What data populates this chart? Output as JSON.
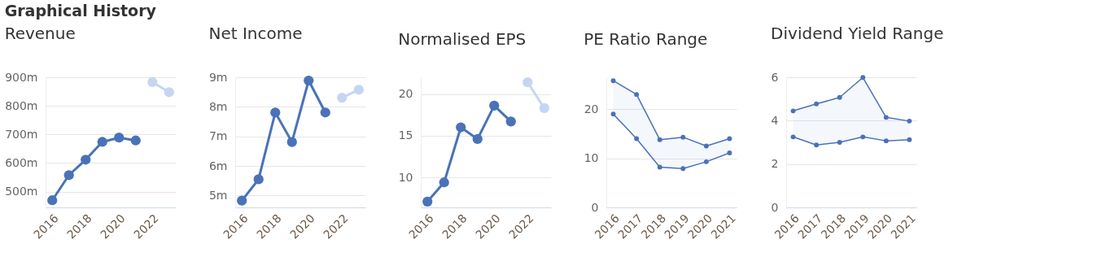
{
  "chart_data": [
    {
      "type": "line",
      "title": "Revenue",
      "annotations": [
        "Graphical History"
      ],
      "marker": "circle",
      "grid": "y",
      "xlim": [
        2015.6,
        2023.4
      ],
      "xticks": [
        2016,
        2018,
        2020,
        2022
      ],
      "ylim": [
        445,
        900
      ],
      "yticks": [
        {
          "value": 500,
          "label": "500m"
        },
        {
          "value": 600,
          "label": "600m"
        },
        {
          "value": 700,
          "label": "700m"
        },
        {
          "value": 800,
          "label": "800m"
        },
        {
          "value": 900,
          "label": "900m"
        }
      ],
      "series": [
        {
          "color": "#4a72b8",
          "x": [
            2016,
            2017,
            2018,
            2019,
            2020,
            2021
          ],
          "values": [
            470,
            558,
            612,
            674,
            689,
            679
          ]
        },
        {
          "color": "#c5d6f2",
          "x": [
            2022,
            2023
          ],
          "values": [
            883,
            848
          ]
        }
      ]
    },
    {
      "type": "line",
      "title": "Net Income",
      "marker": "circle",
      "grid": "y",
      "xlim": [
        2015.6,
        2023.4
      ],
      "xticks": [
        2016,
        2018,
        2020,
        2022
      ],
      "ylim": [
        4.6,
        9
      ],
      "yticks": [
        {
          "value": 5,
          "label": "5m"
        },
        {
          "value": 6,
          "label": "6m"
        },
        {
          "value": 7,
          "label": "7m"
        },
        {
          "value": 8,
          "label": "8m"
        },
        {
          "value": 9,
          "label": "9m"
        }
      ],
      "series": [
        {
          "color": "#4a72b8",
          "x": [
            2016,
            2017,
            2018,
            2019,
            2020,
            2021
          ],
          "values": [
            4.83,
            5.55,
            7.81,
            6.81,
            8.89,
            7.81
          ]
        },
        {
          "color": "#c5d6f2",
          "x": [
            2022,
            2023
          ],
          "values": [
            8.31,
            8.58
          ]
        }
      ]
    },
    {
      "type": "line",
      "title": "Normalised EPS",
      "marker": "circle",
      "grid": "y",
      "xlim": [
        2015.6,
        2023.4
      ],
      "xticks": [
        2016,
        2018,
        2020,
        2022
      ],
      "ylim": [
        6.4,
        22
      ],
      "yticks": [
        10,
        15,
        20
      ],
      "series": [
        {
          "color": "#4a72b8",
          "x": [
            2016,
            2017,
            2018,
            2019,
            2020,
            2021
          ],
          "values": [
            7.1,
            9.4,
            16.0,
            14.6,
            18.6,
            16.7
          ]
        },
        {
          "color": "#c5d6f2",
          "x": [
            2022,
            2023
          ],
          "values": [
            21.4,
            18.3
          ]
        }
      ]
    },
    {
      "type": "line",
      "title": "PE Ratio Range",
      "marker": "circle",
      "grid": "y",
      "xlim": [
        2015.7,
        2021.3
      ],
      "xticks": [
        2016,
        2017,
        2018,
        2019,
        2020,
        2021
      ],
      "ylim": [
        0,
        26.5
      ],
      "yticks": [
        0,
        10,
        20
      ],
      "series": [
        {
          "color": "#4a72b8",
          "x": [
            2016,
            2017,
            2018,
            2019,
            2020,
            2021
          ],
          "values": [
            25.8,
            23.0,
            13.8,
            14.3,
            12.5,
            14.0
          ],
          "lower": [
            19.0,
            14.0,
            8.2,
            7.9,
            9.3,
            11.1
          ],
          "upper": [
            25.8,
            23.0,
            13.8,
            14.3,
            12.5,
            14.0
          ]
        },
        {
          "color": "#4a72b8",
          "x": [
            2016,
            2017,
            2018,
            2019,
            2020,
            2021
          ],
          "values": [
            19.0,
            14.0,
            8.2,
            7.9,
            9.3,
            11.1
          ]
        }
      ]
    },
    {
      "type": "line",
      "title": "Dividend Yield Range",
      "marker": "circle",
      "grid": "y",
      "xlim": [
        2015.7,
        2021.3
      ],
      "xticks": [
        2016,
        2017,
        2018,
        2019,
        2020,
        2021
      ],
      "ylim": [
        0,
        6
      ],
      "yticks": [
        0,
        2,
        4,
        6
      ],
      "series": [
        {
          "color": "#4a72b8",
          "x": [
            2016,
            2017,
            2018,
            2019,
            2020,
            2021
          ],
          "values": [
            4.45,
            4.77,
            5.07,
            5.99,
            4.15,
            3.98
          ],
          "lower": [
            3.25,
            2.88,
            3.0,
            3.25,
            3.07,
            3.12
          ],
          "upper": [
            4.45,
            4.77,
            5.07,
            5.99,
            4.15,
            3.98
          ]
        },
        {
          "color": "#4a72b8",
          "x": [
            2016,
            2017,
            2018,
            2019,
            2020,
            2021
          ],
          "values": [
            3.25,
            2.88,
            3.0,
            3.25,
            3.07,
            3.12
          ]
        }
      ]
    }
  ]
}
